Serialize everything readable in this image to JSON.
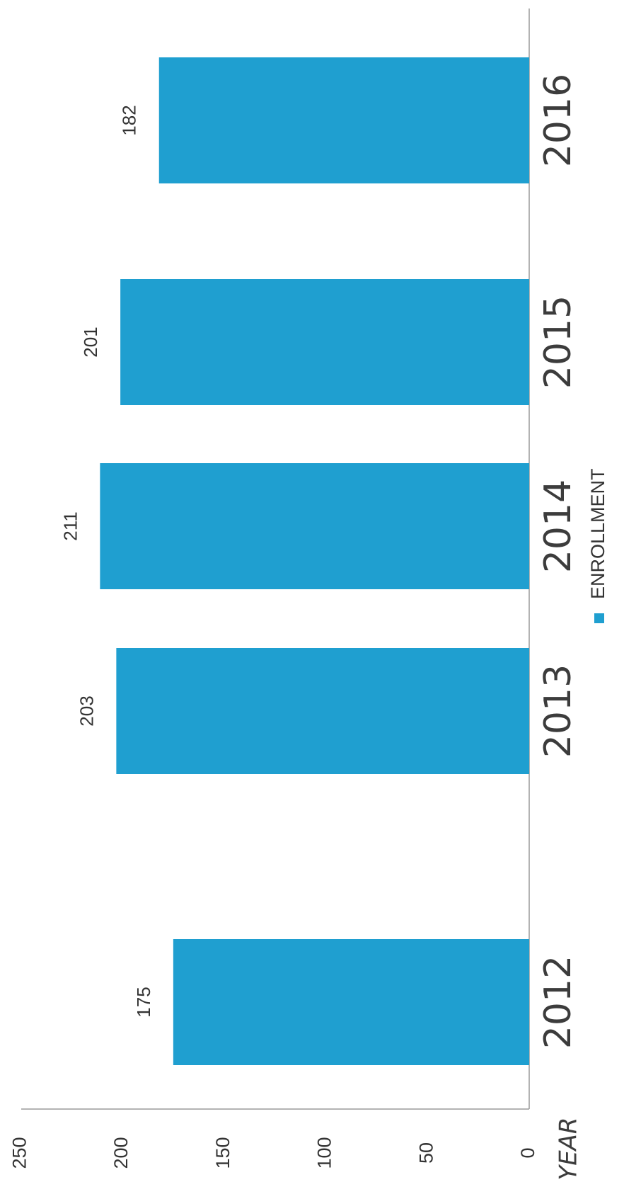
{
  "chart_data": {
    "type": "bar",
    "orientation": "vertical bars, page rotated 90° counter-clockwise",
    "categories": [
      "2012",
      "2013",
      "2014",
      "2015",
      "2016"
    ],
    "series": [
      {
        "name": "ENROLLMENT",
        "values": [
          175,
          203,
          211,
          201,
          182
        ]
      }
    ],
    "data_labels": [
      "175",
      "203",
      "211",
      "201",
      "182"
    ],
    "xlabel": "YEAR",
    "ylabel": "",
    "ylim": [
      0,
      250
    ],
    "yticks": [
      "0",
      "50",
      "100",
      "150",
      "200",
      "250"
    ],
    "grid": false,
    "legend": {
      "position": "bottom",
      "label": "ENROLLMENT"
    },
    "colors": {
      "bar": "#1f9fd0",
      "axis": "#9a9a9a",
      "text": "#333333"
    }
  }
}
